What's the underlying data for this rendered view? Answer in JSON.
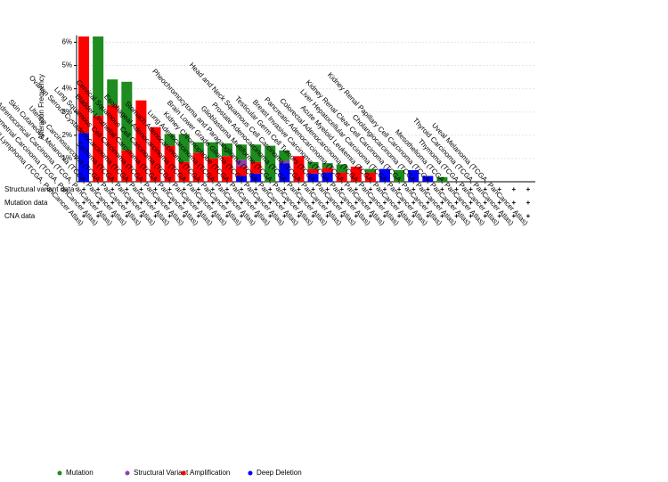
{
  "chart_data": {
    "type": "stacked_bar",
    "y_label": "Alteration Frequency",
    "categories": [
      "Diffuse Large B-Cell Lymphoma (TCGA, PanCancer Atlas)",
      "Uterine Corpus Endometrial Carcinoma (TCGA, PanCancer Atlas)",
      "Adrenocortical Carcinoma (TCGA, PanCancer Atlas)",
      "Skin Cutaneous Melanoma (TCGA, PanCancer Atlas)",
      "Uterine Carcinosarcoma (TCGA, PanCancer Atlas)",
      "Sarcoma (TCGA, PanCancer Atlas)",
      "Ovarian Serous Cystadenocarcinoma (TCGA, PanCancer Atlas)",
      "Lung Squamous Cell Carcinoma (TCGA, PanCancer Atlas)",
      "Bladder Urothelial Carcinoma (TCGA, PanCancer Atlas)",
      "Cervical Squamous Cell Carcinoma (TCGA, PanCancer Atlas)",
      "Esophageal Adenocarcinoma (TCGA, PanCancer Atlas)",
      "Stomach Adenocarcinoma (TCGA, PanCancer Atlas)",
      "Lung Adenocarcinoma (TCGA, PanCancer Atlas)",
      "Kidney Chromophobe (TCGA, PanCancer Atlas)",
      "Brain Lower Grade Glioma (TCGA, PanCancer Atlas)",
      "Pheochromocytoma and Paraganglioma (TCGA, PanCancer Atlas)",
      "Glioblastoma Multiforme (TCGA, PanCancer Atlas)",
      "Prostate Adenocarcinoma (TCGA, PanCancer Atlas)",
      "Head and Neck Squamous Cell Carcinoma (TCGA, PanCancer Atlas)",
      "Testicular Germ Cell Tumors (TCGA, PanCancer Atlas)",
      "Breast Invasive Carcinoma (TCGA, PanCancer Atlas)",
      "Pancreatic Adenocarcinoma (TCGA, PanCancer Atlas)",
      "Colorectal Adenocarcinoma (TCGA, PanCancer Atlas)",
      "Acute Myeloid Leukemia (TCGA, PanCancer Atlas)",
      "Liver Hepatocellular Carcinoma (TCGA, PanCancer Atlas)",
      "Kidney Renal Clear Cell Carcinoma (TCGA, PanCancer Atlas)",
      "Cholangiocarcinoma (TCGA, PanCancer Atlas)",
      "Kidney Renal Papillary Cell Carcinoma (TCGA, PanCancer Atlas)",
      "Mesothelioma (TCGA, PanCancer Atlas)",
      "Thymoma (TCGA, PanCancer Atlas)",
      "Thyroid Carcinoma (TCGA, PanCancer Atlas)",
      "Uveal Melanoma (TCGA, PanCancer Atlas)"
    ],
    "series": [
      {
        "name": "Mutation",
        "color": "#1e8c1e",
        "values": [
          0,
          3.4,
          1.1,
          2.95,
          0,
          0,
          0.5,
          1.2,
          0.45,
          0.7,
          0.55,
          0.65,
          0.75,
          1.55,
          0.45,
          0,
          0.3,
          0.2,
          0.35,
          0,
          0.15,
          0,
          0.5,
          0,
          0,
          0.2,
          0,
          0,
          0,
          0,
          0,
          0
        ]
      },
      {
        "name": "Structural Variant",
        "color": "#8e3fa8",
        "values": [
          0,
          0,
          0,
          0,
          0,
          0,
          0,
          0,
          0,
          0,
          0,
          0.3,
          0,
          0,
          0.1,
          0,
          0,
          0,
          0,
          0,
          0,
          0,
          0,
          0,
          0,
          0,
          0,
          0,
          0,
          0,
          0,
          0
        ]
      },
      {
        "name": "Amplification",
        "color": "#ff0000",
        "values": [
          4.15,
          2.85,
          3.3,
          1.35,
          3.5,
          2.35,
          1.55,
          0.85,
          1.25,
          1.0,
          1.1,
          0.4,
          0.5,
          0,
          0,
          1.1,
          0.2,
          0.2,
          0.4,
          0.65,
          0.4,
          0,
          0,
          0,
          0,
          0,
          0,
          0,
          0,
          0,
          0,
          0
        ]
      },
      {
        "name": "Deep Deletion",
        "color": "#0000ff",
        "values": [
          2.1,
          0,
          0,
          0,
          0,
          0,
          0,
          0,
          0,
          0,
          0,
          0.25,
          0.35,
          0,
          0.8,
          0,
          0.35,
          0.4,
          0,
          0,
          0,
          0.55,
          0,
          0.5,
          0.25,
          0,
          0,
          0,
          0,
          0,
          0,
          0
        ]
      }
    ],
    "ylim": [
      0,
      6.3
    ],
    "yticks": [
      {
        "value": 1,
        "label": "1%"
      },
      {
        "value": 2,
        "label": "2%"
      },
      {
        "value": 3,
        "label": "3%"
      },
      {
        "value": 4,
        "label": "4%"
      },
      {
        "value": 5,
        "label": "5%"
      },
      {
        "value": 6,
        "label": "6%"
      }
    ],
    "grid": true,
    "profile_rows": [
      "Structural variant data",
      "Mutation data",
      "CNA data"
    ],
    "profiled_symbol": "+",
    "legend": "bottom-left"
  }
}
